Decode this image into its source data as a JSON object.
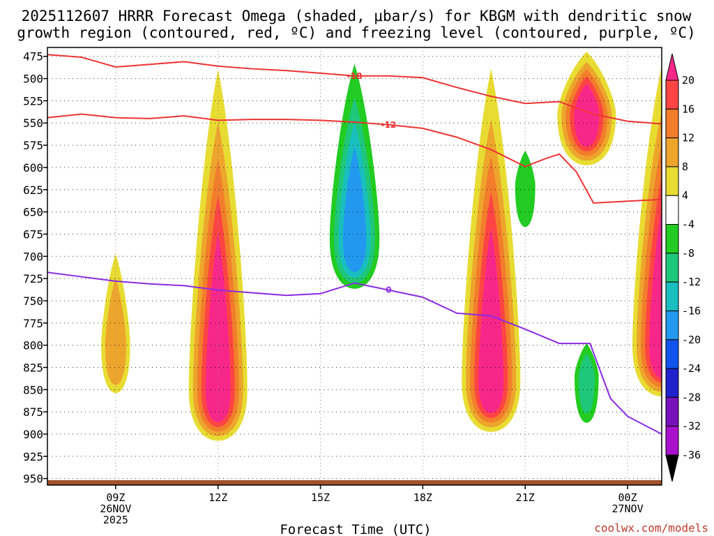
{
  "chart_data": {
    "type": "heatmap",
    "title_line1": "2025112607 HRRR Forecast Omega (shaded, μbar/s) for KBGM with dendritic snow",
    "title_line2": "growth region (contoured, red, ºC) and freezing level (contoured, purple, ºC)",
    "xlabel": "Forecast Time (UTC)",
    "credit": "coolwx.com/models",
    "x_range_hours": [
      7,
      25
    ],
    "y_range_mb": [
      955,
      465
    ],
    "y_ticks": [
      475,
      500,
      525,
      550,
      575,
      600,
      625,
      650,
      675,
      700,
      725,
      750,
      775,
      800,
      825,
      850,
      875,
      900,
      925,
      950
    ],
    "x_ticks": [
      {
        "hour": 9,
        "lines": [
          "09Z",
          "26NOV",
          "2025"
        ]
      },
      {
        "hour": 12,
        "lines": [
          "12Z"
        ]
      },
      {
        "hour": 15,
        "lines": [
          "15Z"
        ]
      },
      {
        "hour": 18,
        "lines": [
          "18Z"
        ]
      },
      {
        "hour": 21,
        "lines": [
          "21Z"
        ]
      },
      {
        "hour": 24,
        "lines": [
          "00Z",
          "27NOV"
        ]
      }
    ],
    "colorbar": {
      "levels": [
        20,
        16,
        12,
        8,
        4,
        -4,
        -8,
        -12,
        -16,
        -20,
        -24,
        -28,
        -32,
        -36
      ],
      "colors": [
        "#f7278a",
        "#ff4444",
        "#f27d2b",
        "#eda52c",
        "#e8dc33",
        "#ffffff",
        "#22cc22",
        "#1fc77a",
        "#19bfbf",
        "#2299ee",
        "#1155ee",
        "#2222cc",
        "#7711bb",
        "#aa11cc",
        "#aaaaaa",
        "#000000"
      ]
    },
    "omega_features": [
      {
        "name": "ascent-09z",
        "peak": 12,
        "center_hour": 9.0,
        "center_mb": 800,
        "top_mb": 680
      },
      {
        "name": "ascent-12z",
        "peak": 22,
        "center_hour": 12.0,
        "center_mb": 850,
        "top_mb": 465
      },
      {
        "name": "descent-16z",
        "peak": -18,
        "center_hour": 16.0,
        "center_mb": 680,
        "top_mb": 465
      },
      {
        "name": "ascent-20z",
        "peak": 22,
        "center_hour": 20.0,
        "center_mb": 840,
        "top_mb": 465
      },
      {
        "name": "descent-21z",
        "peak": -6,
        "center_hour": 21.0,
        "center_mb": 620,
        "top_mb": 565
      },
      {
        "name": "ascent-23z",
        "peak": 22,
        "center_hour": 22.8,
        "center_mb": 540,
        "top_mb": 465
      },
      {
        "name": "descent-22z",
        "peak": -10,
        "center_hour": 22.8,
        "center_mb": 835,
        "top_mb": 790
      },
      {
        "name": "ascent-25z",
        "peak": 22,
        "center_hour": 25.0,
        "center_mb": 800,
        "top_mb": 465
      }
    ],
    "contours": [
      {
        "label": "-18",
        "color": "#ee3333",
        "x": [
          7.0,
          8.0,
          9.0,
          10.0,
          11.0,
          12.0,
          13.0,
          14.0,
          15.0,
          16.0,
          17.0,
          18.0,
          19.0,
          20.0,
          21.0,
          22.0,
          23.0,
          24.0,
          25.0
        ],
        "y": [
          473,
          476,
          487,
          484,
          481,
          486,
          489,
          491,
          494,
          497,
          497,
          499,
          510,
          520,
          528,
          526,
          540,
          548,
          551
        ]
      },
      {
        "label": "-12",
        "color": "#ee3333",
        "x": [
          7.0,
          8.0,
          9.0,
          10.0,
          11.0,
          12.0,
          13.0,
          14.0,
          15.0,
          16.0,
          17.0,
          18.0,
          19.0,
          20.0,
          21.0,
          21.6,
          22.0,
          22.5,
          23.0,
          24.0,
          25.0
        ],
        "y": [
          544,
          540,
          544,
          545,
          542,
          547,
          546,
          546,
          547,
          549,
          552,
          556,
          566,
          580,
          599,
          590,
          585,
          605,
          640,
          638,
          636
        ]
      },
      {
        "label": "0",
        "color": "#8a2be2",
        "x": [
          7.0,
          8.0,
          9.0,
          10.0,
          11.0,
          12.0,
          13.0,
          14.0,
          15.0,
          16.0,
          17.0,
          18.0,
          19.0,
          20.0,
          21.0,
          22.0,
          22.9,
          23.5,
          24.0,
          25.0
        ],
        "y": [
          718,
          723,
          728,
          731,
          733,
          738,
          741,
          744,
          742,
          730,
          738,
          746,
          764,
          767,
          782,
          798,
          798,
          860,
          880,
          900
        ]
      }
    ]
  }
}
